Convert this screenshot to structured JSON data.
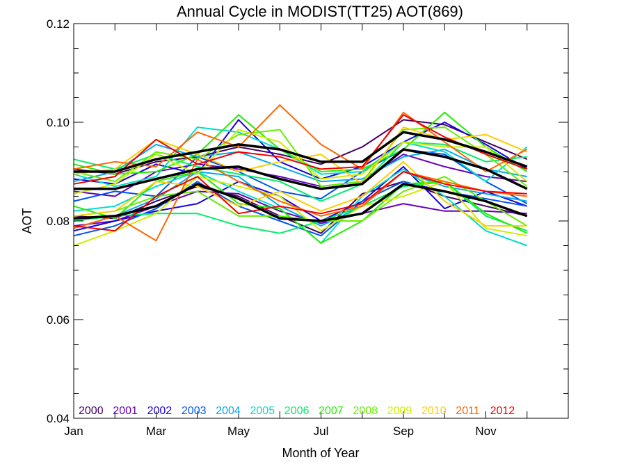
{
  "chart_data": {
    "type": "line",
    "title": "Annual Cycle in MODIST(TT25) AOT(869)",
    "xlabel": "Month of Year",
    "ylabel": "AOT",
    "xlim": [
      1,
      13
    ],
    "ylim": [
      0.04,
      0.12
    ],
    "x_tick_labels": [
      "Jan",
      "Mar",
      "May",
      "Jul",
      "Sep",
      "Nov"
    ],
    "x_tick_values": [
      1,
      3,
      5,
      7,
      9,
      11
    ],
    "y_tick_labels": [
      "0.04",
      "0.06",
      "0.08",
      "0.10",
      "0.12"
    ],
    "y_tick_values": [
      0.04,
      0.06,
      0.08,
      0.1,
      0.12
    ],
    "grid": false,
    "legend_placement": "bottom-left inside plot",
    "months": [
      1,
      2,
      3,
      4,
      5,
      6,
      7,
      8,
      9,
      10,
      11,
      12
    ],
    "series": [
      {
        "name": "2000",
        "color": "#440066",
        "segments": [
          {
            "values": [
              0.0905,
              0.0895,
              0.092,
              0.093,
              0.095,
              0.0935,
              0.0915,
              0.095,
              0.1005,
              0.0995,
              0.096,
              0.0925
            ]
          },
          {
            "values": [
              0.081,
              0.0805,
              0.084,
              0.087,
              0.085,
              0.081,
              0.0775,
              0.0855,
              0.088,
              0.085,
              0.083,
              0.081
            ]
          }
        ]
      },
      {
        "name": "2001",
        "color": "#6600bb",
        "segments": [
          {
            "values": [
              0.086,
              0.085,
              0.09,
              0.0915,
              0.0905,
              0.089,
              0.087,
              0.088,
              0.0935,
              0.091,
              0.089,
              0.088
            ]
          },
          {
            "values": [
              0.079,
              0.08,
              0.083,
              0.086,
              0.0855,
              0.082,
              0.0795,
              0.0815,
              0.0835,
              0.082,
              0.082,
              0.0815
            ]
          }
        ]
      },
      {
        "name": "2002",
        "color": "#1a00dd",
        "segments": [
          {
            "values": [
              0.0885,
              0.0875,
              0.0915,
              0.0895,
              0.1005,
              0.092,
              0.0885,
              0.091,
              0.096,
              0.1,
              0.0955,
              0.0905
            ]
          },
          {
            "values": [
              0.078,
              0.08,
              0.082,
              0.0835,
              0.088,
              0.085,
              0.08,
              0.084,
              0.091,
              0.0825,
              0.086,
              0.083
            ]
          }
        ]
      },
      {
        "name": "2003",
        "color": "#0055ee",
        "segments": [
          {
            "values": [
              0.084,
              0.086,
              0.085,
              0.093,
              0.09,
              0.086,
              0.0845,
              0.09,
              0.0945,
              0.0935,
              0.088,
              0.0835
            ]
          },
          {
            "values": [
              0.077,
              0.079,
              0.0825,
              0.088,
              0.083,
              0.08,
              0.077,
              0.084,
              0.088,
              0.086,
              0.0845,
              0.083
            ]
          }
        ]
      },
      {
        "name": "2004",
        "color": "#00aaee",
        "segments": [
          {
            "values": [
              0.088,
              0.09,
              0.0955,
              0.093,
              0.094,
              0.091,
              0.088,
              0.0885,
              0.093,
              0.0945,
              0.0905,
              0.089
            ]
          },
          {
            "values": [
              0.0785,
              0.081,
              0.0845,
              0.09,
              0.089,
              0.083,
              0.079,
              0.083,
              0.09,
              0.087,
              0.0855,
              0.084
            ]
          }
        ]
      },
      {
        "name": "2005",
        "color": "#00ddcc",
        "segments": [
          {
            "values": [
              0.0895,
              0.087,
              0.089,
              0.099,
              0.098,
              0.0945,
              0.0895,
              0.09,
              0.096,
              0.094,
              0.088,
              0.095
            ]
          },
          {
            "values": [
              0.082,
              0.083,
              0.087,
              0.09,
              0.086,
              0.0825,
              0.0755,
              0.085,
              0.0905,
              0.085,
              0.078,
              0.075
            ]
          }
        ]
      },
      {
        "name": "2006",
        "color": "#00ee66",
        "segments": [
          {
            "values": [
              0.0925,
              0.0905,
              0.0935,
              0.091,
              0.0895,
              0.088,
              0.084,
              0.0875,
              0.096,
              0.0955,
              0.092,
              0.093
            ]
          },
          {
            "values": [
              0.08,
              0.081,
              0.0815,
              0.0815,
              0.079,
              0.0775,
              0.08,
              0.083,
              0.087,
              0.088,
              0.081,
              0.078
            ]
          }
        ]
      },
      {
        "name": "2007",
        "color": "#22ee00",
        "segments": [
          {
            "values": [
              0.0915,
              0.0895,
              0.09,
              0.0935,
              0.1015,
              0.0945,
              0.09,
              0.0905,
              0.0945,
              0.102,
              0.095,
              0.09
            ]
          },
          {
            "values": [
              0.083,
              0.0805,
              0.088,
              0.09,
              0.0835,
              0.0825,
              0.0755,
              0.08,
              0.0875,
              0.088,
              0.0815,
              0.0775
            ]
          }
        ]
      },
      {
        "name": "2008",
        "color": "#66ee00",
        "segments": [
          {
            "values": [
              0.09,
              0.088,
              0.094,
              0.0925,
              0.0975,
              0.0985,
              0.087,
              0.088,
              0.0985,
              0.099,
              0.0935,
              0.087
            ]
          },
          {
            "values": [
              0.081,
              0.082,
              0.085,
              0.086,
              0.081,
              0.081,
              0.08,
              0.08,
              0.086,
              0.089,
              0.084,
              0.079
            ]
          }
        ]
      },
      {
        "name": "2009",
        "color": "#ccee00",
        "segments": [
          {
            "values": [
              0.0855,
              0.0875,
              0.0935,
              0.0895,
              0.0985,
              0.096,
              0.0885,
              0.0895,
              0.096,
              0.095,
              0.095,
              0.088
            ]
          },
          {
            "values": [
              0.075,
              0.078,
              0.0815,
              0.089,
              0.087,
              0.085,
              0.078,
              0.083,
              0.085,
              0.088,
              0.0785,
              0.077
            ]
          }
        ]
      },
      {
        "name": "2010",
        "color": "#ffcc00",
        "segments": [
          {
            "values": [
              0.0895,
              0.0905,
              0.0965,
              0.0935,
              0.09,
              0.092,
              0.0935,
              0.0875,
              0.099,
              0.0965,
              0.0975,
              0.094
            ]
          },
          {
            "values": [
              0.081,
              0.082,
              0.088,
              0.087,
              0.083,
              0.086,
              0.082,
              0.085,
              0.092,
              0.084,
              0.079,
              0.079
            ]
          }
        ]
      },
      {
        "name": "2011",
        "color": "#ff6600",
        "segments": [
          {
            "values": [
              0.0905,
              0.092,
              0.091,
              0.098,
              0.095,
              0.1035,
              0.0955,
              0.0905,
              0.102,
              0.096,
              0.09,
              0.0945
            ]
          },
          {
            "values": [
              0.0785,
              0.081,
              0.076,
              0.0925,
              0.088,
              0.084,
              0.081,
              0.083,
              0.09,
              0.088,
              0.086,
              0.085
            ]
          }
        ]
      },
      {
        "name": "2012",
        "color": "#ee0000",
        "segments": [
          {
            "values": [
              0.0875,
              0.089,
              0.0965,
              0.0915,
              0.094,
              0.093,
              0.0905,
              0.091,
              0.1015,
              0.097,
              0.0935,
              0.0905
            ]
          },
          {
            "values": [
              0.079,
              0.078,
              0.085,
              0.089,
              0.0815,
              0.083,
              0.0815,
              0.0835,
              0.09,
              0.0875,
              0.086,
              0.0855
            ]
          }
        ]
      }
    ],
    "mean_lines": {
      "color": "#000000",
      "lines": [
        [
          0.09,
          0.09,
          0.0925,
          0.094,
          0.0955,
          0.0945,
          0.092,
          0.092,
          0.098,
          0.0965,
          0.094,
          0.091
        ],
        [
          0.0865,
          0.0865,
          0.0885,
          0.0905,
          0.091,
          0.0885,
          0.0865,
          0.0875,
          0.0945,
          0.093,
          0.0905,
          0.0865
        ],
        [
          0.0805,
          0.081,
          0.083,
          0.0875,
          0.0845,
          0.0805,
          0.08,
          0.0815,
          0.0875,
          0.086,
          0.084,
          0.081
        ]
      ]
    }
  }
}
